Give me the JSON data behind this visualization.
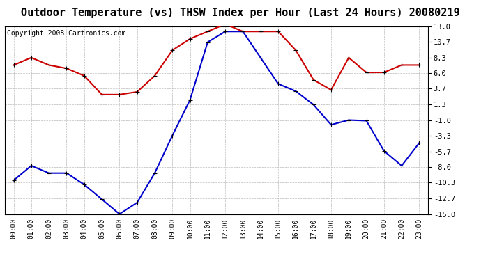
{
  "title": "Outdoor Temperature (vs) THSW Index per Hour (Last 24 Hours) 20080219",
  "copyright": "Copyright 2008 Cartronics.com",
  "hours": [
    "00:00",
    "01:00",
    "02:00",
    "03:00",
    "04:00",
    "05:00",
    "06:00",
    "07:00",
    "08:00",
    "09:00",
    "10:00",
    "11:00",
    "12:00",
    "13:00",
    "14:00",
    "15:00",
    "16:00",
    "17:00",
    "18:00",
    "19:00",
    "20:00",
    "21:00",
    "22:00",
    "23:00"
  ],
  "red_data": [
    7.2,
    8.3,
    7.2,
    6.7,
    5.6,
    2.8,
    2.8,
    3.2,
    5.6,
    9.4,
    11.1,
    12.2,
    13.3,
    12.2,
    12.2,
    12.2,
    9.4,
    5.0,
    3.5,
    8.3,
    6.1,
    6.1,
    7.2,
    7.2
  ],
  "blue_data": [
    -10.0,
    -7.8,
    -8.9,
    -8.9,
    -10.6,
    -12.8,
    -15.0,
    -13.3,
    -8.9,
    -3.3,
    2.0,
    10.6,
    12.2,
    12.2,
    8.3,
    4.4,
    3.3,
    1.3,
    -1.7,
    -1.0,
    -1.1,
    -5.6,
    -7.8,
    -4.4
  ],
  "red_color": "#cc0000",
  "blue_color": "#0000cc",
  "bg_color": "#ffffff",
  "plot_bg_color": "#ffffff",
  "grid_color": "#bbbbbb",
  "yticks": [
    13.0,
    10.7,
    8.3,
    6.0,
    3.7,
    1.3,
    -1.0,
    -3.3,
    -5.7,
    -8.0,
    -10.3,
    -12.7,
    -15.0
  ],
  "ymin": -15.0,
  "ymax": 13.0,
  "title_fontsize": 11,
  "copyright_fontsize": 7,
  "marker": "+",
  "markersize": 5,
  "linewidth": 1.5
}
